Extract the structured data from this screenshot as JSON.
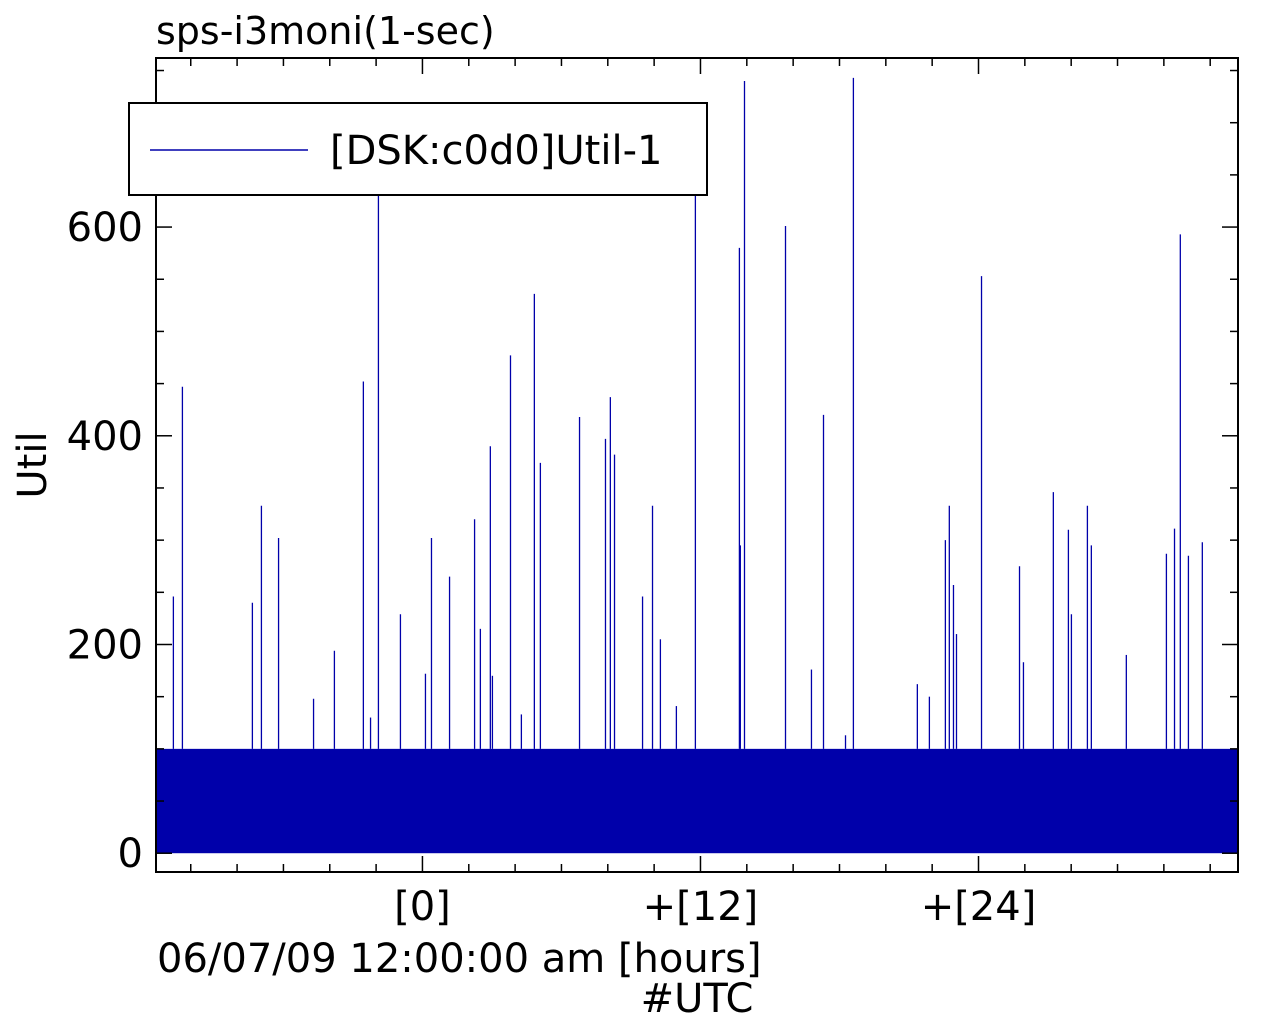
{
  "chart_data": {
    "type": "line",
    "title": "sps-i3moni(1-sec)",
    "xlabel": "06/07/09 12:00:00 am [hours]",
    "xlabel2": "#UTC",
    "ylabel": "Util",
    "xlim": [
      -11.5,
      35.2
    ],
    "ylim": [
      -18,
      762
    ],
    "xticks": [
      {
        "value": 0,
        "label": "[0]"
      },
      {
        "value": 12,
        "label": "+[12]"
      },
      {
        "value": 24,
        "label": "+[24]"
      }
    ],
    "yticks": [
      {
        "value": 0,
        "label": "0"
      },
      {
        "value": 200,
        "label": "200"
      },
      {
        "value": 400,
        "label": "400"
      },
      {
        "value": 600,
        "label": "600"
      }
    ],
    "legend": {
      "position": "top-left",
      "entries": [
        "[DSK:c0d0]Util-1"
      ]
    },
    "colors": {
      "series": "#0000aa"
    },
    "series": [
      {
        "name": "[DSK:c0d0]Util-1",
        "baseline_band": [
          0,
          100
        ],
        "spikes": [
          [
            -10.75,
            246
          ],
          [
            -10.36,
            447
          ],
          [
            -7.34,
            240
          ],
          [
            -6.95,
            333
          ],
          [
            -6.21,
            302
          ],
          [
            -4.7,
            148
          ],
          [
            -3.8,
            194
          ],
          [
            -2.55,
            452
          ],
          [
            -2.24,
            130
          ],
          [
            -1.9,
            700
          ],
          [
            -0.95,
            229
          ],
          [
            0.13,
            172
          ],
          [
            0.39,
            302
          ],
          [
            1.17,
            265
          ],
          [
            2.25,
            320
          ],
          [
            2.5,
            215
          ],
          [
            2.93,
            390
          ],
          [
            3.02,
            170
          ],
          [
            3.8,
            477
          ],
          [
            4.27,
            133
          ],
          [
            4.83,
            536
          ],
          [
            5.09,
            374
          ],
          [
            6.78,
            418
          ],
          [
            7.9,
            397
          ],
          [
            8.11,
            437
          ],
          [
            8.29,
            382
          ],
          [
            9.5,
            246
          ],
          [
            9.93,
            333
          ],
          [
            10.27,
            205
          ],
          [
            10.96,
            141
          ],
          [
            11.78,
            700
          ],
          [
            13.68,
            580
          ],
          [
            13.72,
            295
          ],
          [
            13.9,
            740
          ],
          [
            15.67,
            601
          ],
          [
            16.79,
            176
          ],
          [
            17.31,
            420
          ],
          [
            18.26,
            113
          ],
          [
            18.6,
            743
          ],
          [
            21.36,
            162
          ],
          [
            21.88,
            150
          ],
          [
            22.57,
            300
          ],
          [
            22.74,
            333
          ],
          [
            22.92,
            257
          ],
          [
            23.05,
            210
          ],
          [
            24.13,
            553
          ],
          [
            25.77,
            275
          ],
          [
            25.94,
            183
          ],
          [
            27.23,
            346
          ],
          [
            27.88,
            310
          ],
          [
            28.01,
            229
          ],
          [
            28.7,
            333
          ],
          [
            28.87,
            295
          ],
          [
            30.38,
            190
          ],
          [
            32.11,
            287
          ],
          [
            32.46,
            311
          ],
          [
            32.71,
            593
          ],
          [
            33.06,
            285
          ],
          [
            33.66,
            298
          ]
        ]
      }
    ]
  }
}
